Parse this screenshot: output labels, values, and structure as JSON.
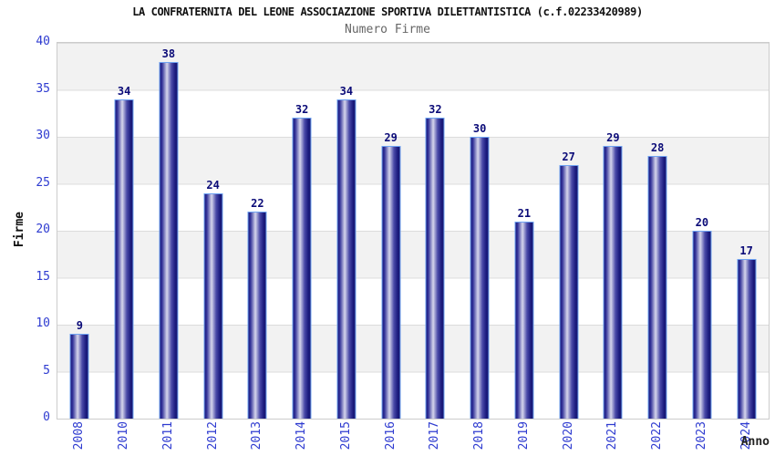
{
  "chart_data": {
    "type": "bar",
    "title": "LA CONFRATERNITA DEL LEONE ASSOCIAZIONE SPORTIVA DILETTANTISTICA (c.f.02233420989)",
    "subtitle": "Numero Firme",
    "xlabel": "Anno",
    "ylabel": "Firme",
    "categories": [
      "2008",
      "2010",
      "2011",
      "2012",
      "2013",
      "2014",
      "2015",
      "2016",
      "2017",
      "2018",
      "2019",
      "2020",
      "2021",
      "2022",
      "2023",
      "2024"
    ],
    "values": [
      9,
      34,
      38,
      24,
      22,
      32,
      34,
      29,
      32,
      30,
      21,
      27,
      29,
      28,
      20,
      17
    ],
    "ylim": [
      0,
      40
    ],
    "yticks": [
      0,
      5,
      10,
      15,
      20,
      25,
      30,
      35,
      40
    ],
    "bar_value_labels_shown": true,
    "legend_position": "none",
    "grid": "alternating gray/white horizontal bands every 5 units with light gridlines",
    "colors": {
      "bar_edge": "#6fa3f2",
      "bar_dark": "#1b1b7e",
      "bar_light": "#d6d6ec",
      "tick_label_blue": "#2e3bd0",
      "value_label_navy": "#0b0b78",
      "band_gray": "#f2f2f2",
      "band_white": "#ffffff",
      "plot_border": "#cccccc",
      "subtitle_gray": "#666666",
      "axis_title_black": "#111111"
    }
  }
}
